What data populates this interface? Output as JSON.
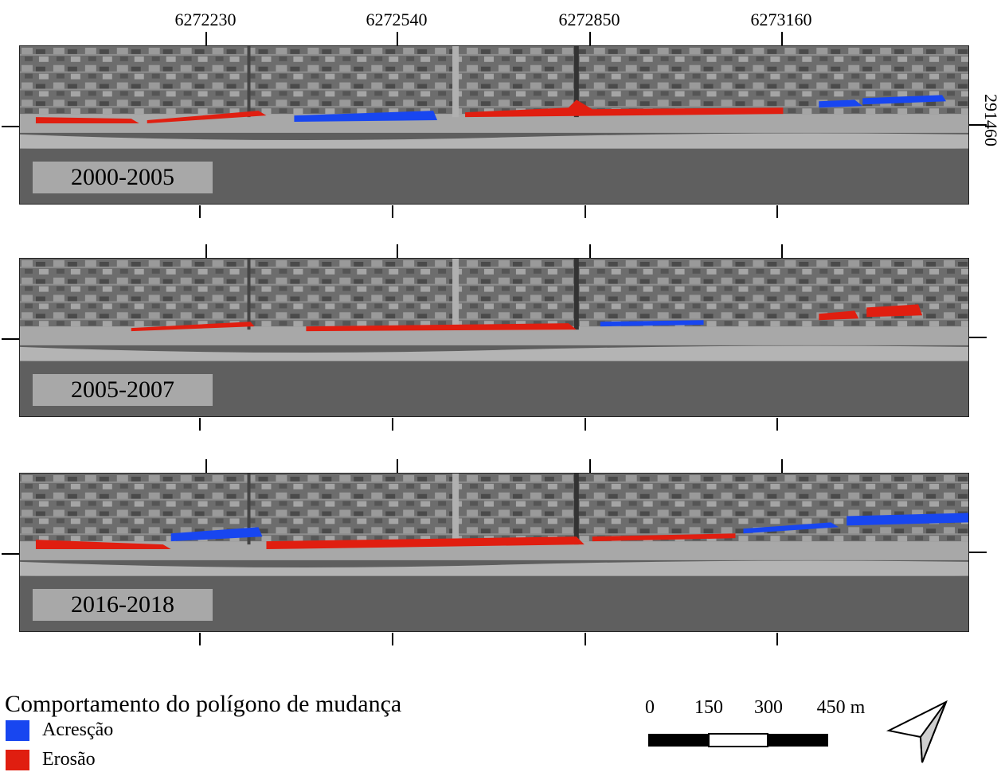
{
  "top_coords": [
    "6272230",
    "6272540",
    "6272850",
    "6273160"
  ],
  "right_coord": "291460",
  "panels": [
    {
      "period": "2000-2005"
    },
    {
      "period": "2005-2007"
    },
    {
      "period": "2016-2018"
    }
  ],
  "legend": {
    "title": "Comportamento do polígono de mudança",
    "items": [
      {
        "label": "Acresção",
        "color": "#1846f0"
      },
      {
        "label": "Erosão",
        "color": "#e01e10"
      }
    ]
  },
  "scale_bar": {
    "labels": [
      "0",
      "150",
      "300",
      "450 m"
    ]
  },
  "north_arrow": "north-arrow-icon"
}
